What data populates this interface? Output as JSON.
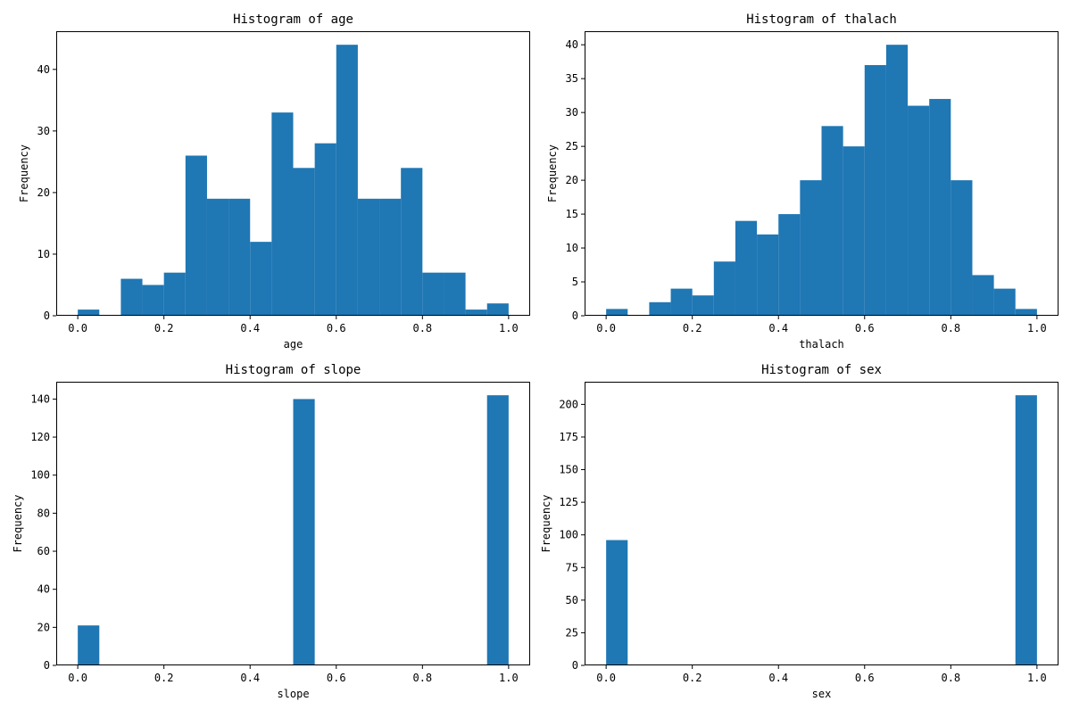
{
  "figure": {
    "background": "#ffffff",
    "bar_color": "#1f77b4"
  },
  "chart_data": [
    {
      "type": "bar",
      "title": "Histogram of age",
      "xlabel": "age",
      "ylabel": "Frequency",
      "bins": 20,
      "bin_range": [
        0,
        1
      ],
      "values": [
        1,
        0,
        6,
        5,
        7,
        26,
        19,
        19,
        12,
        33,
        24,
        28,
        44,
        19,
        19,
        24,
        7,
        7,
        1,
        2
      ],
      "xlim": [
        -0.05,
        1.05
      ],
      "ylim": [
        0,
        46.2
      ],
      "xticks": [
        0.0,
        0.2,
        0.4,
        0.6,
        0.8,
        1.0
      ],
      "xtick_labels": [
        "0.0",
        "0.2",
        "0.4",
        "0.6",
        "0.8",
        "1.0"
      ],
      "yticks": [
        0,
        10,
        20,
        30,
        40
      ],
      "ytick_labels": [
        "0",
        "10",
        "20",
        "30",
        "40"
      ],
      "grid": false
    },
    {
      "type": "bar",
      "title": "Histogram of thalach",
      "xlabel": "thalach",
      "ylabel": "Frequency",
      "bins": 20,
      "bin_range": [
        0,
        1
      ],
      "values": [
        1,
        0,
        2,
        4,
        3,
        8,
        14,
        12,
        15,
        20,
        28,
        25,
        37,
        40,
        31,
        32,
        20,
        6,
        4,
        1
      ],
      "xlim": [
        -0.05,
        1.05
      ],
      "ylim": [
        0,
        42
      ],
      "xticks": [
        0.0,
        0.2,
        0.4,
        0.6,
        0.8,
        1.0
      ],
      "xtick_labels": [
        "0.0",
        "0.2",
        "0.4",
        "0.6",
        "0.8",
        "1.0"
      ],
      "yticks": [
        0,
        5,
        10,
        15,
        20,
        25,
        30,
        35,
        40
      ],
      "ytick_labels": [
        "0",
        "5",
        "10",
        "15",
        "20",
        "25",
        "30",
        "35",
        "40"
      ],
      "grid": false
    },
    {
      "type": "bar",
      "title": "Histogram of slope",
      "xlabel": "slope",
      "ylabel": "Frequency",
      "bins": 20,
      "bin_range": [
        0,
        1
      ],
      "values": [
        21,
        0,
        0,
        0,
        0,
        0,
        0,
        0,
        0,
        0,
        140,
        0,
        0,
        0,
        0,
        0,
        0,
        0,
        0,
        142
      ],
      "xlim": [
        -0.05,
        1.05
      ],
      "ylim": [
        0,
        149.1
      ],
      "xticks": [
        0.0,
        0.2,
        0.4,
        0.6,
        0.8,
        1.0
      ],
      "xtick_labels": [
        "0.0",
        "0.2",
        "0.4",
        "0.6",
        "0.8",
        "1.0"
      ],
      "yticks": [
        0,
        20,
        40,
        60,
        80,
        100,
        120,
        140
      ],
      "ytick_labels": [
        "0",
        "20",
        "40",
        "60",
        "80",
        "100",
        "120",
        "140"
      ],
      "grid": false
    },
    {
      "type": "bar",
      "title": "Histogram of sex",
      "xlabel": "sex",
      "ylabel": "Frequency",
      "bins": 20,
      "bin_range": [
        0,
        1
      ],
      "values": [
        96,
        0,
        0,
        0,
        0,
        0,
        0,
        0,
        0,
        0,
        0,
        0,
        0,
        0,
        0,
        0,
        0,
        0,
        0,
        207
      ],
      "xlim": [
        -0.05,
        1.05
      ],
      "ylim": [
        0,
        217.35
      ],
      "xticks": [
        0.0,
        0.2,
        0.4,
        0.6,
        0.8,
        1.0
      ],
      "xtick_labels": [
        "0.0",
        "0.2",
        "0.4",
        "0.6",
        "0.8",
        "1.0"
      ],
      "yticks": [
        0,
        25,
        50,
        75,
        100,
        125,
        150,
        175,
        200
      ],
      "ytick_labels": [
        "0",
        "25",
        "50",
        "75",
        "100",
        "125",
        "150",
        "175",
        "200"
      ],
      "grid": false
    }
  ]
}
